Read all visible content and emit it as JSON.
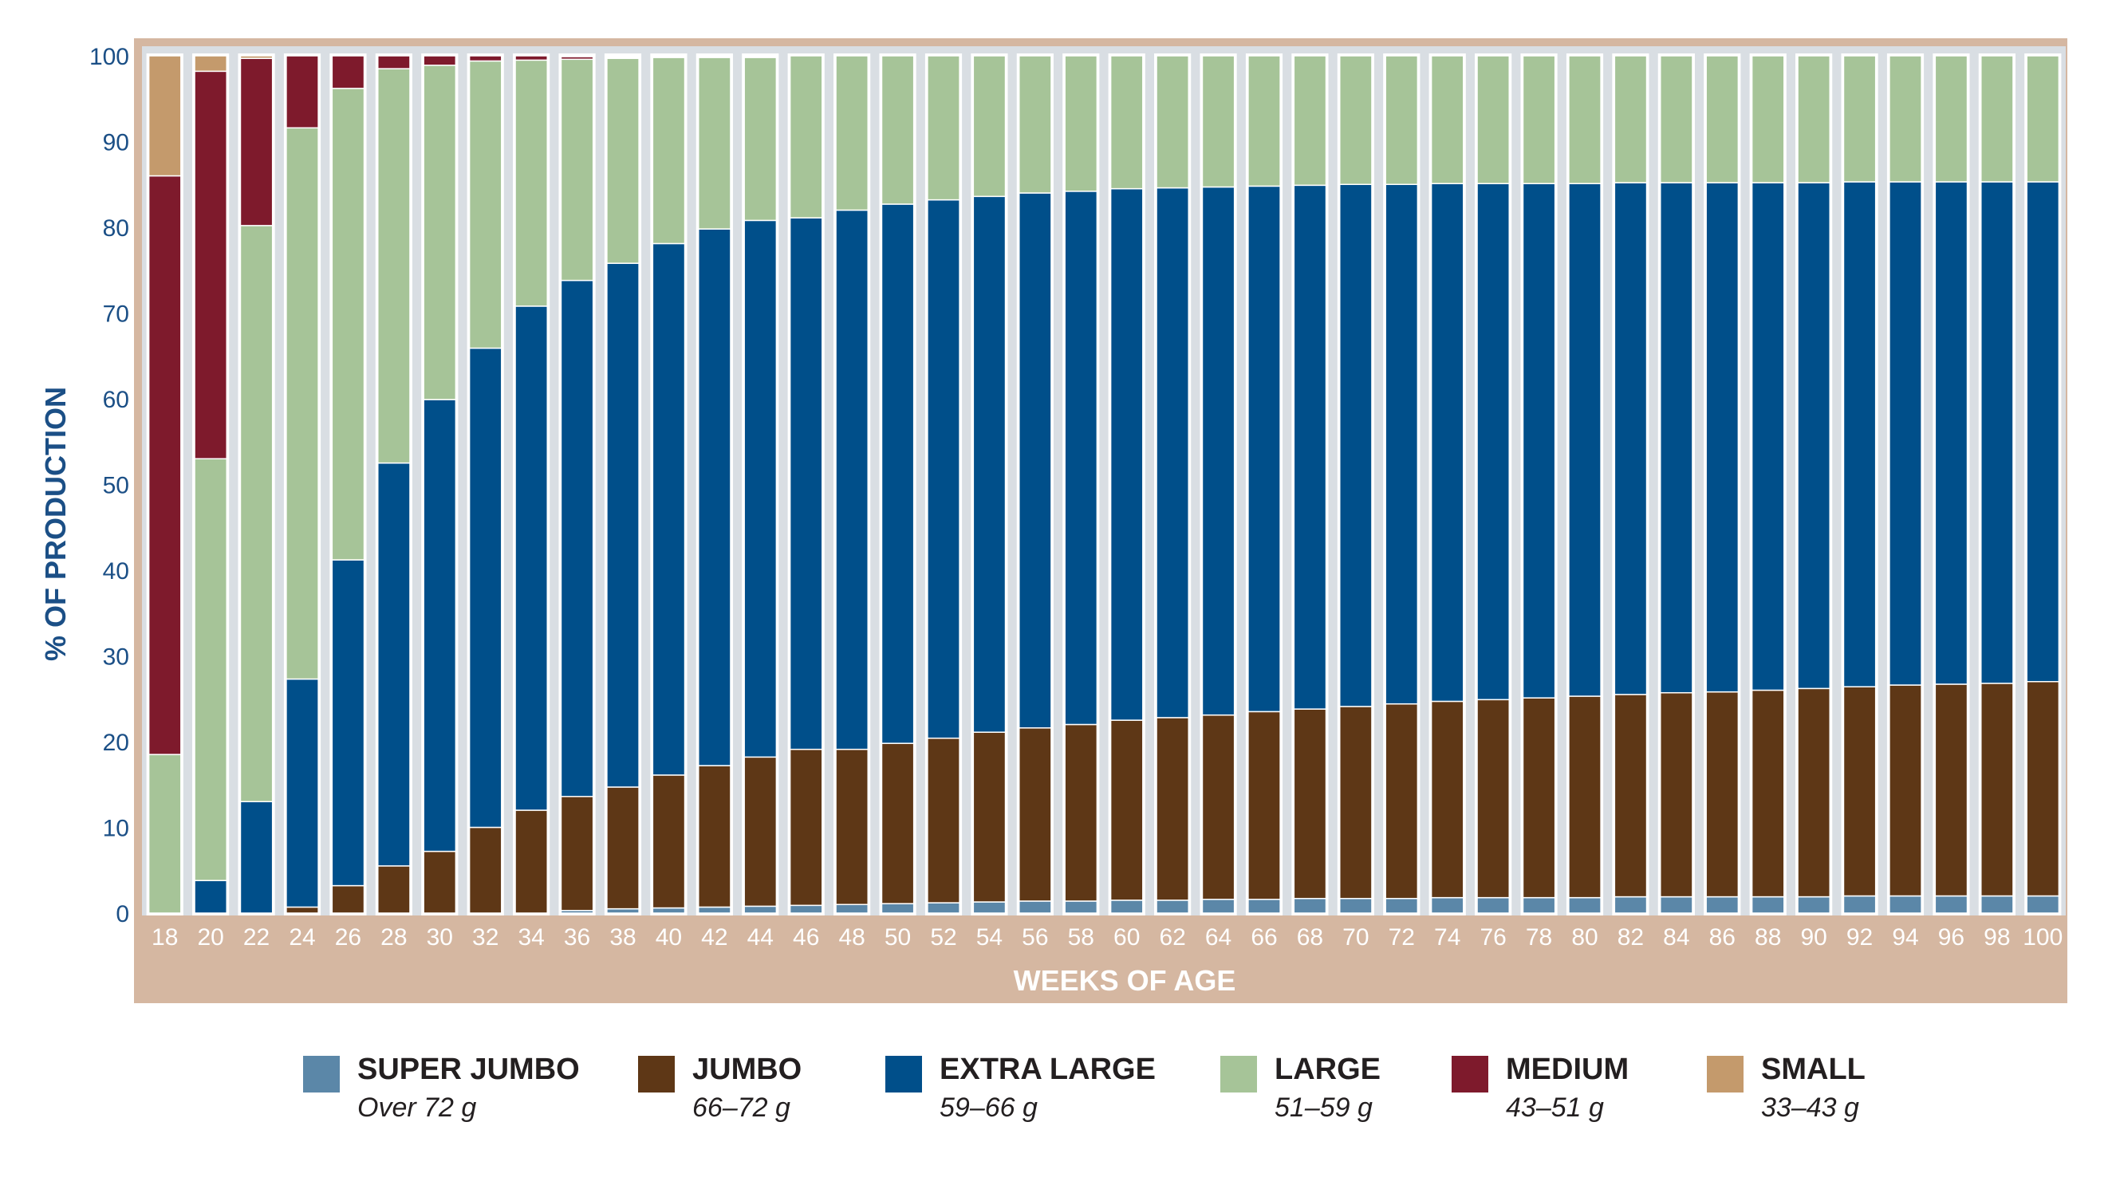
{
  "chart_data": {
    "type": "bar",
    "stacked": true,
    "title": "",
    "xlabel": "WEEKS OF AGE",
    "ylabel": "% OF PRODUCTION",
    "ylim": [
      0,
      100
    ],
    "yticks": [
      "0",
      "10",
      "20",
      "30",
      "40",
      "50",
      "60",
      "70",
      "80",
      "90",
      "100"
    ],
    "grid": false,
    "legend_position": "bottom",
    "categories": [
      "18",
      "20",
      "22",
      "24",
      "26",
      "28",
      "30",
      "32",
      "34",
      "36",
      "38",
      "40",
      "42",
      "44",
      "46",
      "48",
      "50",
      "52",
      "54",
      "56",
      "58",
      "60",
      "62",
      "64",
      "66",
      "68",
      "70",
      "72",
      "74",
      "76",
      "78",
      "80",
      "82",
      "84",
      "86",
      "88",
      "90",
      "92",
      "94",
      "96",
      "98",
      "100"
    ],
    "series": [
      {
        "name": "SUPER JUMBO",
        "range": "Over 72 g",
        "color": "#5b87a8",
        "values": [
          0,
          0,
          0,
          0,
          0,
          0,
          0,
          0,
          0,
          0.3,
          0.5,
          0.6,
          0.7,
          0.8,
          0.9,
          1.0,
          1.1,
          1.2,
          1.3,
          1.4,
          1.4,
          1.5,
          1.5,
          1.6,
          1.6,
          1.7,
          1.7,
          1.7,
          1.8,
          1.8,
          1.8,
          1.8,
          1.9,
          1.9,
          1.9,
          1.9,
          1.9,
          2.0,
          2.0,
          2.0,
          2.0,
          2.0
        ]
      },
      {
        "name": "JUMBO",
        "range": "66–72 g",
        "color": "#5e3716",
        "values": [
          0,
          0,
          0,
          0.7,
          3.2,
          5.5,
          7.2,
          10.0,
          12.0,
          13.3,
          14.2,
          15.5,
          16.5,
          17.4,
          18.2,
          18.1,
          18.7,
          19.2,
          19.8,
          20.2,
          20.6,
          21.0,
          21.3,
          21.5,
          21.9,
          22.1,
          22.4,
          22.7,
          22.9,
          23.1,
          23.3,
          23.5,
          23.6,
          23.8,
          23.9,
          24.1,
          24.3,
          24.4,
          24.6,
          24.7,
          24.8,
          25.0
        ]
      },
      {
        "name": "EXTRA LARGE",
        "range": "59–66 g",
        "color": "#004f8a",
        "values": [
          0,
          3.8,
          13.0,
          26.6,
          38.0,
          47.0,
          52.7,
          55.9,
          58.8,
          60.2,
          61.1,
          62.0,
          62.6,
          62.6,
          62.0,
          62.9,
          62.9,
          62.8,
          62.5,
          62.4,
          62.2,
          62.0,
          61.8,
          61.6,
          61.3,
          61.1,
          60.9,
          60.6,
          60.4,
          60.2,
          60.0,
          59.8,
          59.7,
          59.5,
          59.4,
          59.2,
          59.0,
          58.9,
          58.7,
          58.6,
          58.5,
          58.3
        ]
      },
      {
        "name": "LARGE",
        "range": "51–59 g",
        "color": "#a6c498",
        "values": [
          18.5,
          49.2,
          67.2,
          64.3,
          55.0,
          46.0,
          39.0,
          33.5,
          28.7,
          25.8,
          23.9,
          21.7,
          20.0,
          19.0,
          18.9,
          18.0,
          17.3,
          16.8,
          16.4,
          16.0,
          15.8,
          15.5,
          15.4,
          15.3,
          15.2,
          15.1,
          15.0,
          15.0,
          14.9,
          14.9,
          14.9,
          14.9,
          14.8,
          14.8,
          14.8,
          14.8,
          14.8,
          14.7,
          14.7,
          14.7,
          14.7,
          14.7
        ]
      },
      {
        "name": "MEDIUM",
        "range": "43–51 g",
        "color": "#7e1a2c",
        "values": [
          67.5,
          45.2,
          19.5,
          8.4,
          3.8,
          1.5,
          1.1,
          0.6,
          0.5,
          0.3,
          0,
          0,
          0,
          0,
          0,
          0,
          0,
          0,
          0,
          0,
          0,
          0,
          0,
          0,
          0,
          0,
          0,
          0,
          0,
          0,
          0,
          0,
          0,
          0,
          0,
          0,
          0,
          0,
          0,
          0,
          0,
          0
        ]
      },
      {
        "name": "SMALL",
        "range": "33–43 g",
        "color": "#c49a6c",
        "values": [
          14.0,
          1.8,
          0.3,
          0,
          0,
          0,
          0,
          0,
          0,
          0,
          0,
          0,
          0,
          0,
          0,
          0,
          0,
          0,
          0,
          0,
          0,
          0,
          0,
          0,
          0,
          0,
          0,
          0,
          0,
          0,
          0,
          0,
          0,
          0,
          0,
          0,
          0,
          0,
          0,
          0,
          0,
          0
        ]
      }
    ]
  },
  "colors": {
    "frame": "#d5b7a1",
    "plot_background": "#d9dee3",
    "axis_text": "#ffffff",
    "ylabel_color": "#1b4f86",
    "ytick_color": "#1b4f86"
  }
}
